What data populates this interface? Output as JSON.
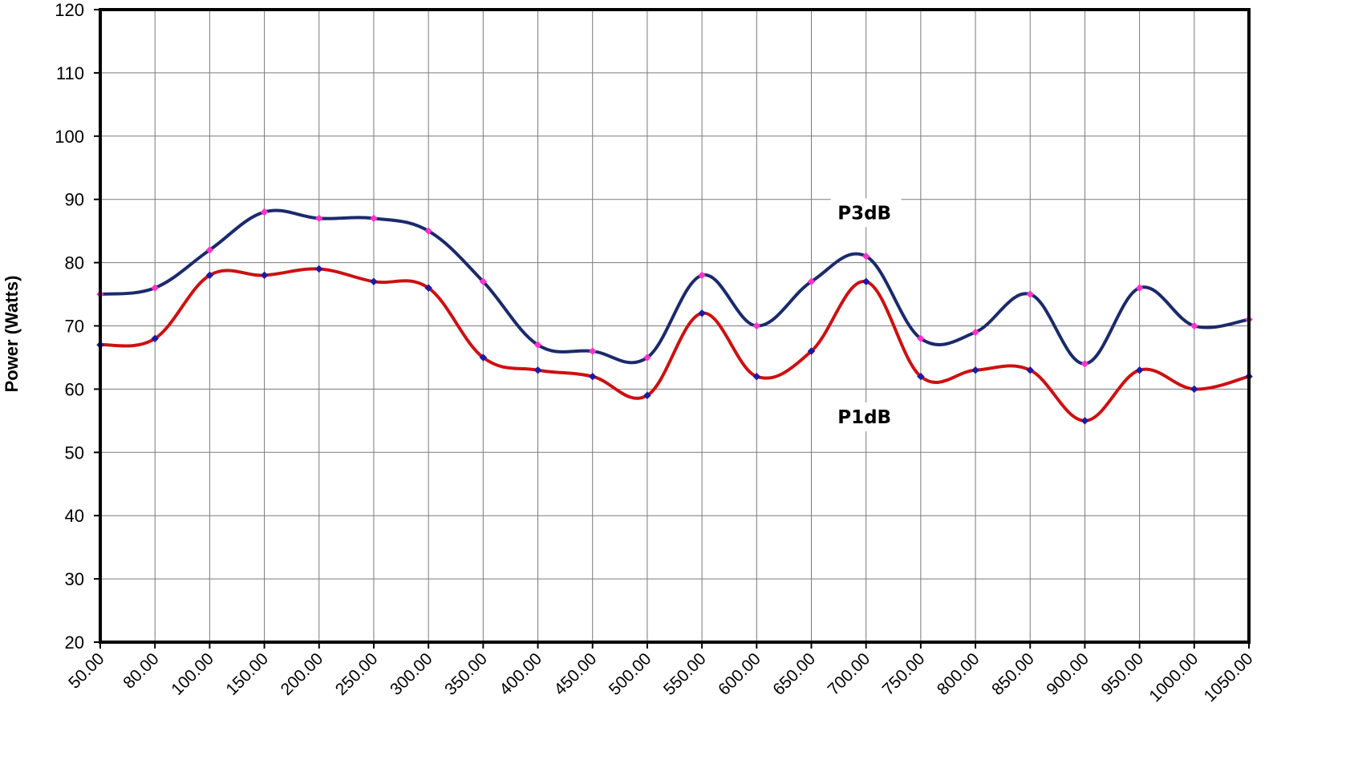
{
  "chart_data": {
    "type": "line",
    "title": "",
    "xlabel": "",
    "ylabel": "Power (Watts)",
    "ylim": [
      20,
      120
    ],
    "yticks": [
      "20",
      "30",
      "40",
      "50",
      "60",
      "70",
      "80",
      "90",
      "100",
      "110",
      "120"
    ],
    "grid": true,
    "legend": "none",
    "categories": [
      "50.00",
      "80.00",
      "100.00",
      "150.00",
      "200.00",
      "250.00",
      "300.00",
      "350.00",
      "400.00",
      "450.00",
      "500.00",
      "550.00",
      "600.00",
      "650.00",
      "700.00",
      "750.00",
      "800.00",
      "850.00",
      "900.00",
      "950.00",
      "1000.00",
      "1050.00"
    ],
    "series": [
      {
        "name": "P3dB",
        "color": "#1b2a6b",
        "marker_color": "#ff33cc",
        "values": [
          75,
          76,
          82,
          88,
          87,
          87,
          85,
          77,
          67,
          66,
          65,
          78,
          70,
          77,
          81,
          68,
          69,
          75,
          64,
          76,
          70,
          71
        ]
      },
      {
        "name": "P1dB",
        "color": "#cc1111",
        "marker_color": "#1a1aa6",
        "values": [
          67,
          68,
          78,
          78,
          79,
          77,
          76,
          65,
          63,
          62,
          59,
          72,
          62,
          66,
          77,
          62,
          63,
          63,
          55,
          63,
          60,
          62
        ]
      }
    ],
    "annotations": [
      {
        "text": "P3dB",
        "category_index": 14,
        "y": 87.9
      },
      {
        "text": "P1dB",
        "category_index": 14,
        "y": 55.6
      }
    ]
  }
}
